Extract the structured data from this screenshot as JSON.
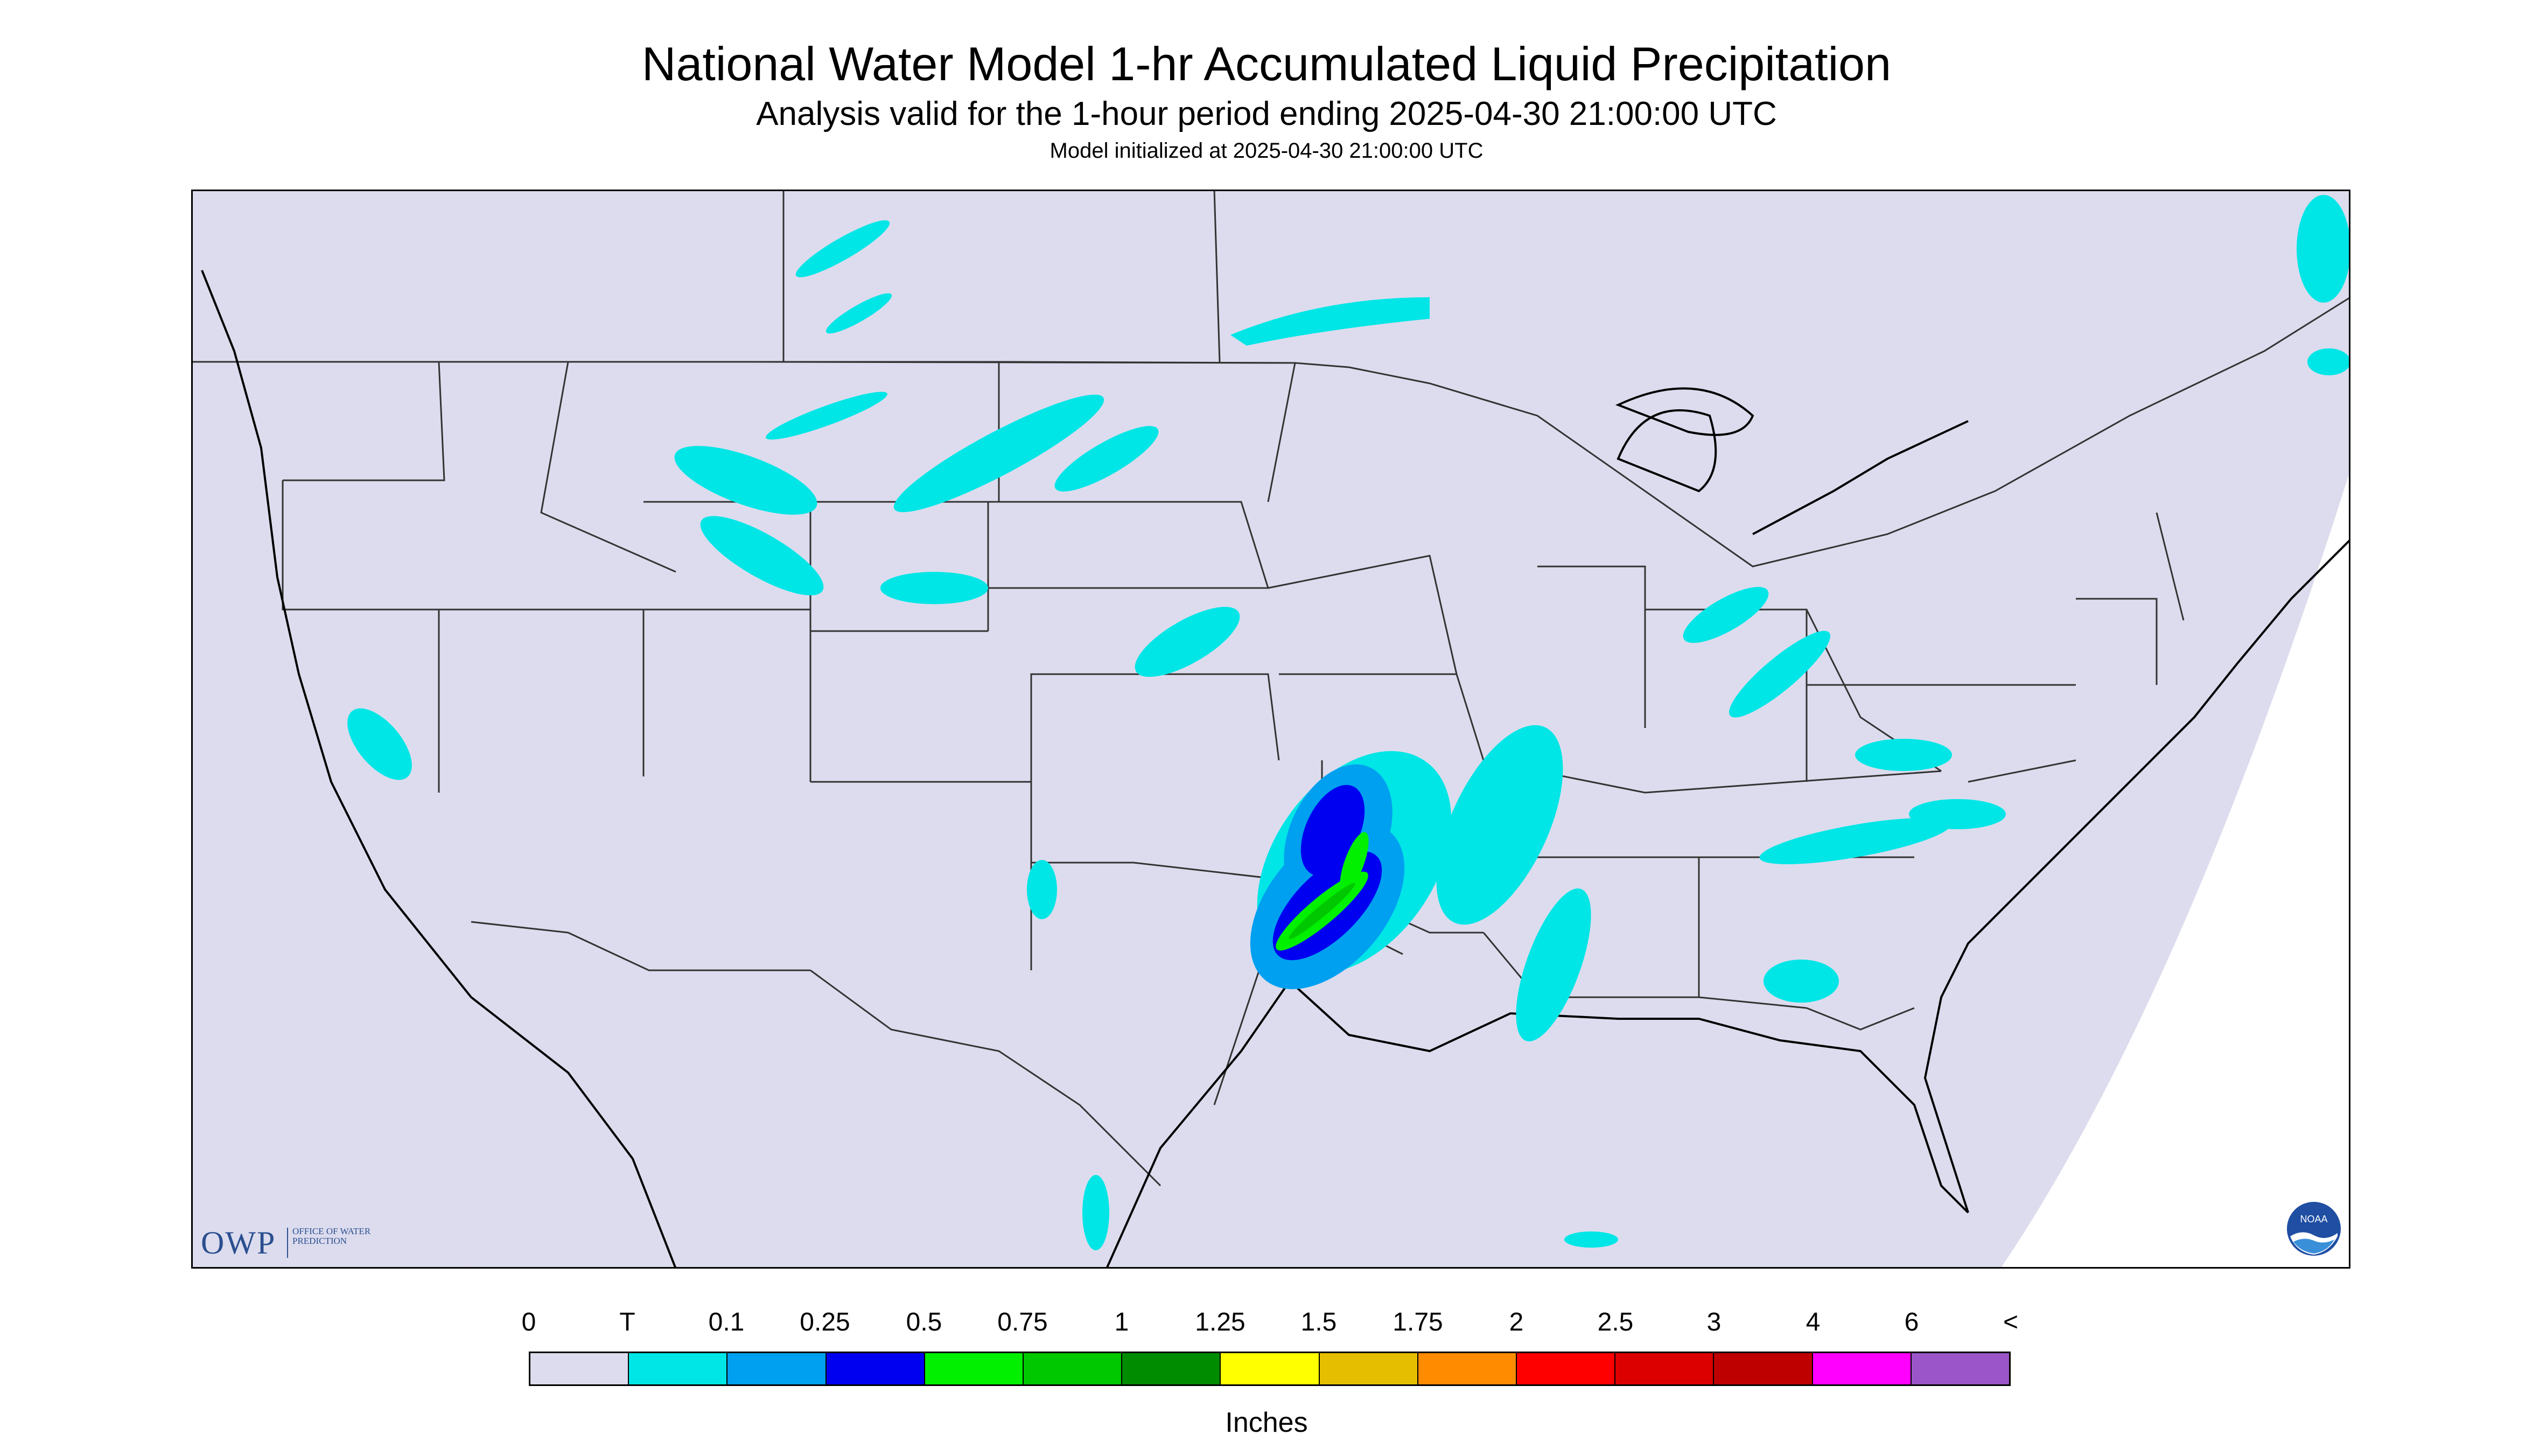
{
  "header": {
    "title": "National Water Model 1-hr Accumulated Liquid Precipitation",
    "subtitle": "Analysis valid for the 1-hour period ending 2025-04-30 21:00:00 UTC",
    "init": "Model initialized at 2025-04-30 21:00:00 UTC"
  },
  "logos": {
    "owp_abbrev": "OWP",
    "owp_name": "OFFICE OF WATER PREDICTION",
    "noaa": "NOAA"
  },
  "legend": {
    "labels": [
      "0",
      "T",
      "0.1",
      "0.25",
      "0.5",
      "0.75",
      "1",
      "1.25",
      "1.5",
      "1.75",
      "2",
      "2.5",
      "3",
      "4",
      "6",
      "<"
    ],
    "colors": [
      "#dcdcee",
      "#00e6e6",
      "#00a0f0",
      "#0000f0",
      "#00f000",
      "#00c800",
      "#008c00",
      "#ffff00",
      "#e6be00",
      "#ff8c00",
      "#ff0000",
      "#dc0000",
      "#be0000",
      "#ff00ff",
      "#9b55c8"
    ],
    "units": "Inches"
  },
  "map": {
    "background_color": "#dcdcee",
    "colors": {
      "trace": "#00e6e6",
      "light": "#00a0f0",
      "moderate": "#0000f0",
      "heavy": "#00f000",
      "very_heavy": "#00c800"
    }
  }
}
